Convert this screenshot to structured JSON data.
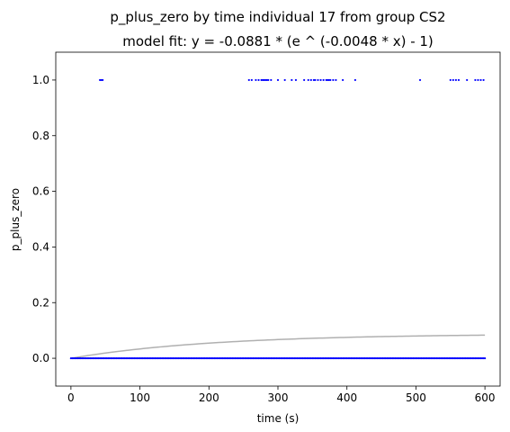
{
  "chart_data": {
    "type": "scatter",
    "title": "p_plus_zero by time individual 17 from group CS2",
    "subtitle": "model fit: y = -0.0881 * (e ^ (-0.0048 * x) - 1)",
    "xlabel": "time (s)",
    "ylabel": "p_plus_zero",
    "xlim": [
      -22,
      622
    ],
    "ylim": [
      -0.1,
      1.1
    ],
    "x_ticks": [
      0,
      100,
      200,
      300,
      400,
      500,
      600
    ],
    "y_ticks": [
      0.0,
      0.2,
      0.4,
      0.6,
      0.8,
      1.0
    ],
    "x_tick_labels": [
      "0",
      "100",
      "200",
      "300",
      "400",
      "500",
      "600"
    ],
    "y_tick_labels": [
      "0.0",
      "0.2",
      "0.4",
      "0.6",
      "0.8",
      "1.0"
    ],
    "grid": false,
    "marker_color": "#0000ff",
    "fit_color": "#b0b0b0",
    "zero_series": {
      "x_start": 0,
      "x_end": 600,
      "x_step": 2,
      "y": 0
    },
    "one_points_x": [
      42,
      44,
      46,
      258,
      262,
      268,
      272,
      276,
      278,
      280,
      282,
      284,
      286,
      290,
      300,
      310,
      320,
      326,
      338,
      344,
      348,
      352,
      354,
      358,
      362,
      366,
      370,
      372,
      374,
      376,
      380,
      384,
      394,
      412,
      506,
      550,
      554,
      558,
      562,
      574,
      586,
      590,
      594,
      598
    ],
    "fit": {
      "a": -0.0881,
      "b": -0.0048,
      "x_start": 0,
      "x_end": 600
    }
  }
}
